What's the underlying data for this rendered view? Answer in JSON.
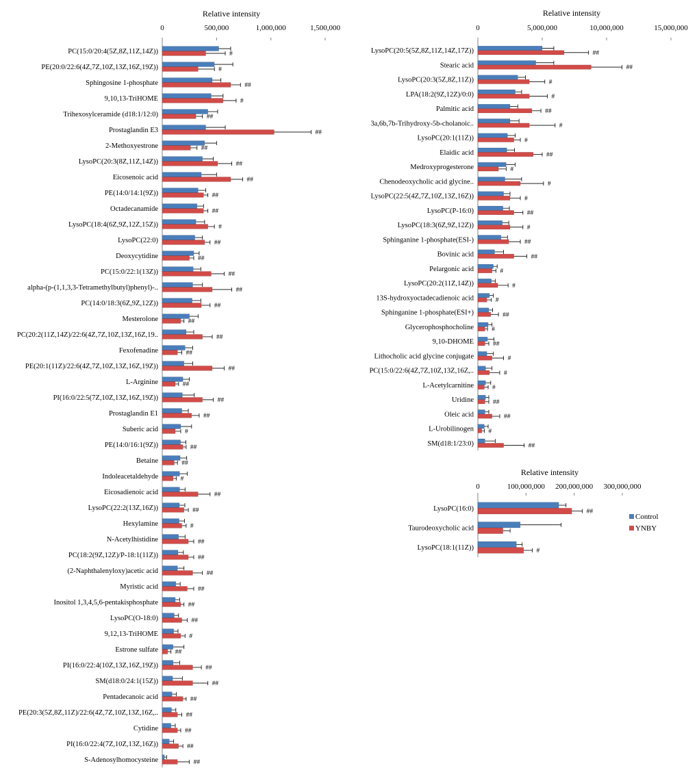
{
  "colors": {
    "control": "#4a7ebb",
    "ynby": "#d24b48"
  },
  "legend": {
    "position": "right",
    "entries": [
      "Control",
      "YNBY"
    ]
  },
  "chart_data": [
    {
      "type": "bar",
      "orientation": "horizontal",
      "xlabel": "Relative intensity",
      "xlim": [
        0,
        1500000
      ],
      "ticks": [
        0,
        500000,
        1000000,
        1500000
      ],
      "tick_labels": [
        "0",
        "500,000",
        "1,000,000",
        "1,500,000"
      ],
      "categories": [
        "PC(15:0/20:4(5Z,8Z,11Z,14Z))",
        "PE(20:0/22:6(4Z,7Z,10Z,13Z,16Z,19Z))",
        "Sphingosine 1-phosphate",
        "9,10,13-TriHOME",
        "Trihexosylceramide (d18:1/12:0)",
        "Prostaglandin E3",
        "2-Methoxyestrone",
        "LysoPC(20:3(8Z,11Z,14Z))",
        "Eicosenoic acid",
        "PE(14:0/14:1(9Z))",
        "Octadecanamide",
        "LysoPC(18:4(6Z,9Z,12Z,15Z))",
        "LysoPC(22:0)",
        "Deoxycytidine",
        "PC(15:0/22:1(13Z))",
        "alpha-(p-(1,1,3,3-Tetramethylbutyl)phenyl)-..",
        "PC(14:0/18:3(6Z,9Z,12Z))",
        "Mesterolone",
        "PC(20:2(11Z,14Z)/22:6(4Z,7Z,10Z,13Z,16Z,19..",
        "Fexofenadine",
        "PE(20:1(11Z)/22:6(4Z,7Z,10Z,13Z,16Z,19Z))",
        "L-Arginine",
        "PI(16:0/22:5(7Z,10Z,13Z,16Z,19Z))",
        "Prostaglandin E1",
        "Suberic acid",
        "PE(14:0/16:1(9Z))",
        "Betaine",
        "Indoleacetaldehyde",
        "Eicosadienoic acid",
        "LysoPC(22:2(13Z,16Z))",
        "Hexylamine",
        "N-Acetylhistidine",
        "PC(18:2(9Z,12Z)/P-18:1(11Z))",
        "(2-Naphthalenyloxy)acetic acid",
        "Myristic acid",
        "Inositol 1,3,4,5,6-pentakisphosphate",
        "LysoPC(O-18:0)",
        "9,12,13-TriHOME",
        "Estrone sulfate",
        "PI(16:0/22:4(10Z,13Z,16Z,19Z))",
        "SM(d18:0/24:1(15Z))",
        "Pentadecanoic acid",
        "PE(20:3(5Z,8Z,11Z)/22:6(4Z,7Z,10Z,13Z,16Z,..",
        "Cytidine",
        "PI(16:0/22:4(7Z,10Z,13Z,16Z))",
        "S-Adenosylhomocysteine"
      ],
      "series": [
        {
          "name": "Control",
          "values": [
            520000,
            480000,
            460000,
            450000,
            420000,
            400000,
            390000,
            370000,
            360000,
            330000,
            320000,
            310000,
            300000,
            290000,
            285000,
            280000,
            275000,
            250000,
            220000,
            210000,
            200000,
            190000,
            185000,
            180000,
            170000,
            168000,
            165000,
            160000,
            160000,
            158000,
            155000,
            150000,
            145000,
            140000,
            125000,
            120000,
            110000,
            105000,
            100000,
            100000,
            95000,
            90000,
            85000,
            80000,
            65000,
            20000
          ],
          "errors": [
            110000,
            170000,
            80000,
            110000,
            90000,
            180000,
            110000,
            100000,
            140000,
            70000,
            60000,
            80000,
            70000,
            50000,
            70000,
            90000,
            80000,
            80000,
            70000,
            70000,
            80000,
            60000,
            110000,
            60000,
            100000,
            50000,
            60000,
            70000,
            50000,
            50000,
            50000,
            60000,
            50000,
            60000,
            40000,
            40000,
            40000,
            40000,
            100000,
            60000,
            90000,
            40000,
            40000,
            40000,
            40000,
            20000
          ]
        },
        {
          "name": "YNBY",
          "values": [
            400000,
            330000,
            630000,
            560000,
            310000,
            1030000,
            260000,
            510000,
            630000,
            380000,
            380000,
            420000,
            390000,
            250000,
            450000,
            460000,
            360000,
            170000,
            370000,
            140000,
            460000,
            120000,
            370000,
            270000,
            120000,
            190000,
            110000,
            100000,
            330000,
            200000,
            180000,
            240000,
            240000,
            280000,
            230000,
            170000,
            180000,
            170000,
            50000,
            280000,
            280000,
            190000,
            140000,
            140000,
            150000,
            140000
          ],
          "errors": [
            180000,
            150000,
            90000,
            120000,
            60000,
            340000,
            60000,
            130000,
            110000,
            40000,
            40000,
            60000,
            50000,
            40000,
            120000,
            180000,
            80000,
            30000,
            90000,
            40000,
            110000,
            30000,
            100000,
            70000,
            50000,
            30000,
            30000,
            30000,
            110000,
            40000,
            40000,
            50000,
            50000,
            90000,
            60000,
            30000,
            50000,
            40000,
            30000,
            80000,
            140000,
            30000,
            40000,
            30000,
            40000,
            110000
          ]
        }
      ],
      "markers": [
        "#",
        "#",
        "##",
        "#",
        "##",
        "##",
        "##",
        "##",
        "##",
        "##",
        "##",
        "#",
        "##",
        "##",
        "##",
        "##",
        "##",
        "##",
        "##",
        "##",
        "##",
        "##",
        "##",
        "##",
        "#",
        "##",
        "##",
        "#",
        "##",
        "##",
        "#",
        "##",
        "##",
        "##",
        "##",
        "##",
        "##",
        "#",
        "##",
        "##",
        "##",
        "##",
        "##",
        "##",
        "##",
        "##"
      ]
    },
    {
      "type": "bar",
      "orientation": "horizontal",
      "xlabel": "Relative intensity",
      "xlim": [
        0,
        15000000
      ],
      "ticks": [
        0,
        5000000,
        10000000,
        15000000
      ],
      "tick_labels": [
        "0",
        "5,000,000",
        "10,000,000",
        "15,000,000"
      ],
      "categories": [
        "LysoPC(20:5(5Z,8Z,11Z,14Z,17Z))",
        "Stearic acid",
        "LysoPC(20:3(5Z,8Z,11Z))",
        "LPA(18:2(9Z,12Z)/0:0)",
        "Palmitic acid",
        "3a,6b,7b-Trihydroxy-5b-cholanoic..",
        "LysoPC(20:1(11Z))",
        "Elaidic acid",
        "Medroxyprogesterone",
        "Chenodeoxycholic acid glycine..",
        "LysoPC(22:5(4Z,7Z,10Z,13Z,16Z))",
        "LysoPC(P-16:0)",
        "LysoPC(18:3(6Z,9Z,12Z))",
        "Sphinganine 1-phosphate(ESI-)",
        "Bovinic acid",
        "Pelargonic acid",
        "LysoPC(20:2(11Z,14Z))",
        "13S-hydroxyoctadecadienoic acid",
        "Sphinganine 1-phosphate(ESI+)",
        "Glycerophosphocholine",
        "9,10-DHOME",
        "Lithocholic acid glycine conjugate",
        "PC(15:0/22:6(4Z,7Z,10Z,13Z,16Z,..",
        "L-Acetylcarnitine",
        "Uridine",
        "Oleic acid",
        "L-Urobilinogen",
        "SM(d18:1/23:0)"
      ],
      "series": [
        {
          "name": "Control",
          "values": [
            5000000,
            4500000,
            3100000,
            2900000,
            2500000,
            2500000,
            2300000,
            2250000,
            2200000,
            2100000,
            2000000,
            1950000,
            1900000,
            1800000,
            1300000,
            1200000,
            1050000,
            900000,
            850000,
            800000,
            750000,
            700000,
            600000,
            600000,
            600000,
            550000,
            500000,
            550000
          ],
          "errors": [
            900000,
            1400000,
            600000,
            500000,
            600000,
            700000,
            600000,
            600000,
            700000,
            1300000,
            500000,
            500000,
            500000,
            500000,
            700000,
            300000,
            300000,
            300000,
            300000,
            300000,
            500000,
            500000,
            500000,
            400000,
            250000,
            300000,
            300000,
            800000
          ]
        },
        {
          "name": "YNBY",
          "values": [
            6700000,
            8800000,
            4000000,
            4000000,
            4200000,
            4000000,
            2800000,
            4300000,
            1600000,
            3300000,
            2500000,
            2800000,
            2500000,
            2400000,
            2800000,
            1100000,
            1550000,
            700000,
            1000000,
            550000,
            550000,
            1100000,
            900000,
            500000,
            550000,
            1100000,
            300000,
            2000000
          ],
          "errors": [
            1900000,
            2400000,
            1200000,
            1400000,
            700000,
            2000000,
            500000,
            700000,
            600000,
            1800000,
            800000,
            700000,
            1000000,
            900000,
            1000000,
            300000,
            800000,
            350000,
            600000,
            200000,
            300000,
            900000,
            800000,
            300000,
            300000,
            600000,
            200000,
            1600000
          ]
        }
      ],
      "markers": [
        "##",
        "##",
        "#",
        "#",
        "##",
        "#",
        "#",
        "##",
        "#",
        "#",
        "#",
        "##",
        "#",
        "##",
        "##",
        "#",
        "#",
        "#",
        "##",
        "#",
        "##",
        "#",
        "#",
        "#",
        "##",
        "##",
        "#",
        "##"
      ]
    },
    {
      "type": "bar",
      "orientation": "horizontal",
      "xlabel": "Relative intensity",
      "xlim": [
        0,
        300000000
      ],
      "ticks": [
        0,
        100000000,
        200000000,
        300000000
      ],
      "tick_labels": [
        "0",
        "100,000,000",
        "200,000,000",
        "300,000,000"
      ],
      "categories": [
        "LysoPC(16:0)",
        "Taurodeoxycholic acid",
        "LysoPC(18:1(11Z))"
      ],
      "series": [
        {
          "name": "Control",
          "values": [
            168000000,
            88000000,
            80000000
          ],
          "errors": [
            15000000,
            85000000,
            12000000
          ]
        },
        {
          "name": "YNBY",
          "values": [
            195000000,
            52000000,
            95000000
          ],
          "errors": [
            22000000,
            15000000,
            18000000
          ]
        }
      ],
      "markers": [
        "##",
        "",
        "#"
      ]
    }
  ]
}
